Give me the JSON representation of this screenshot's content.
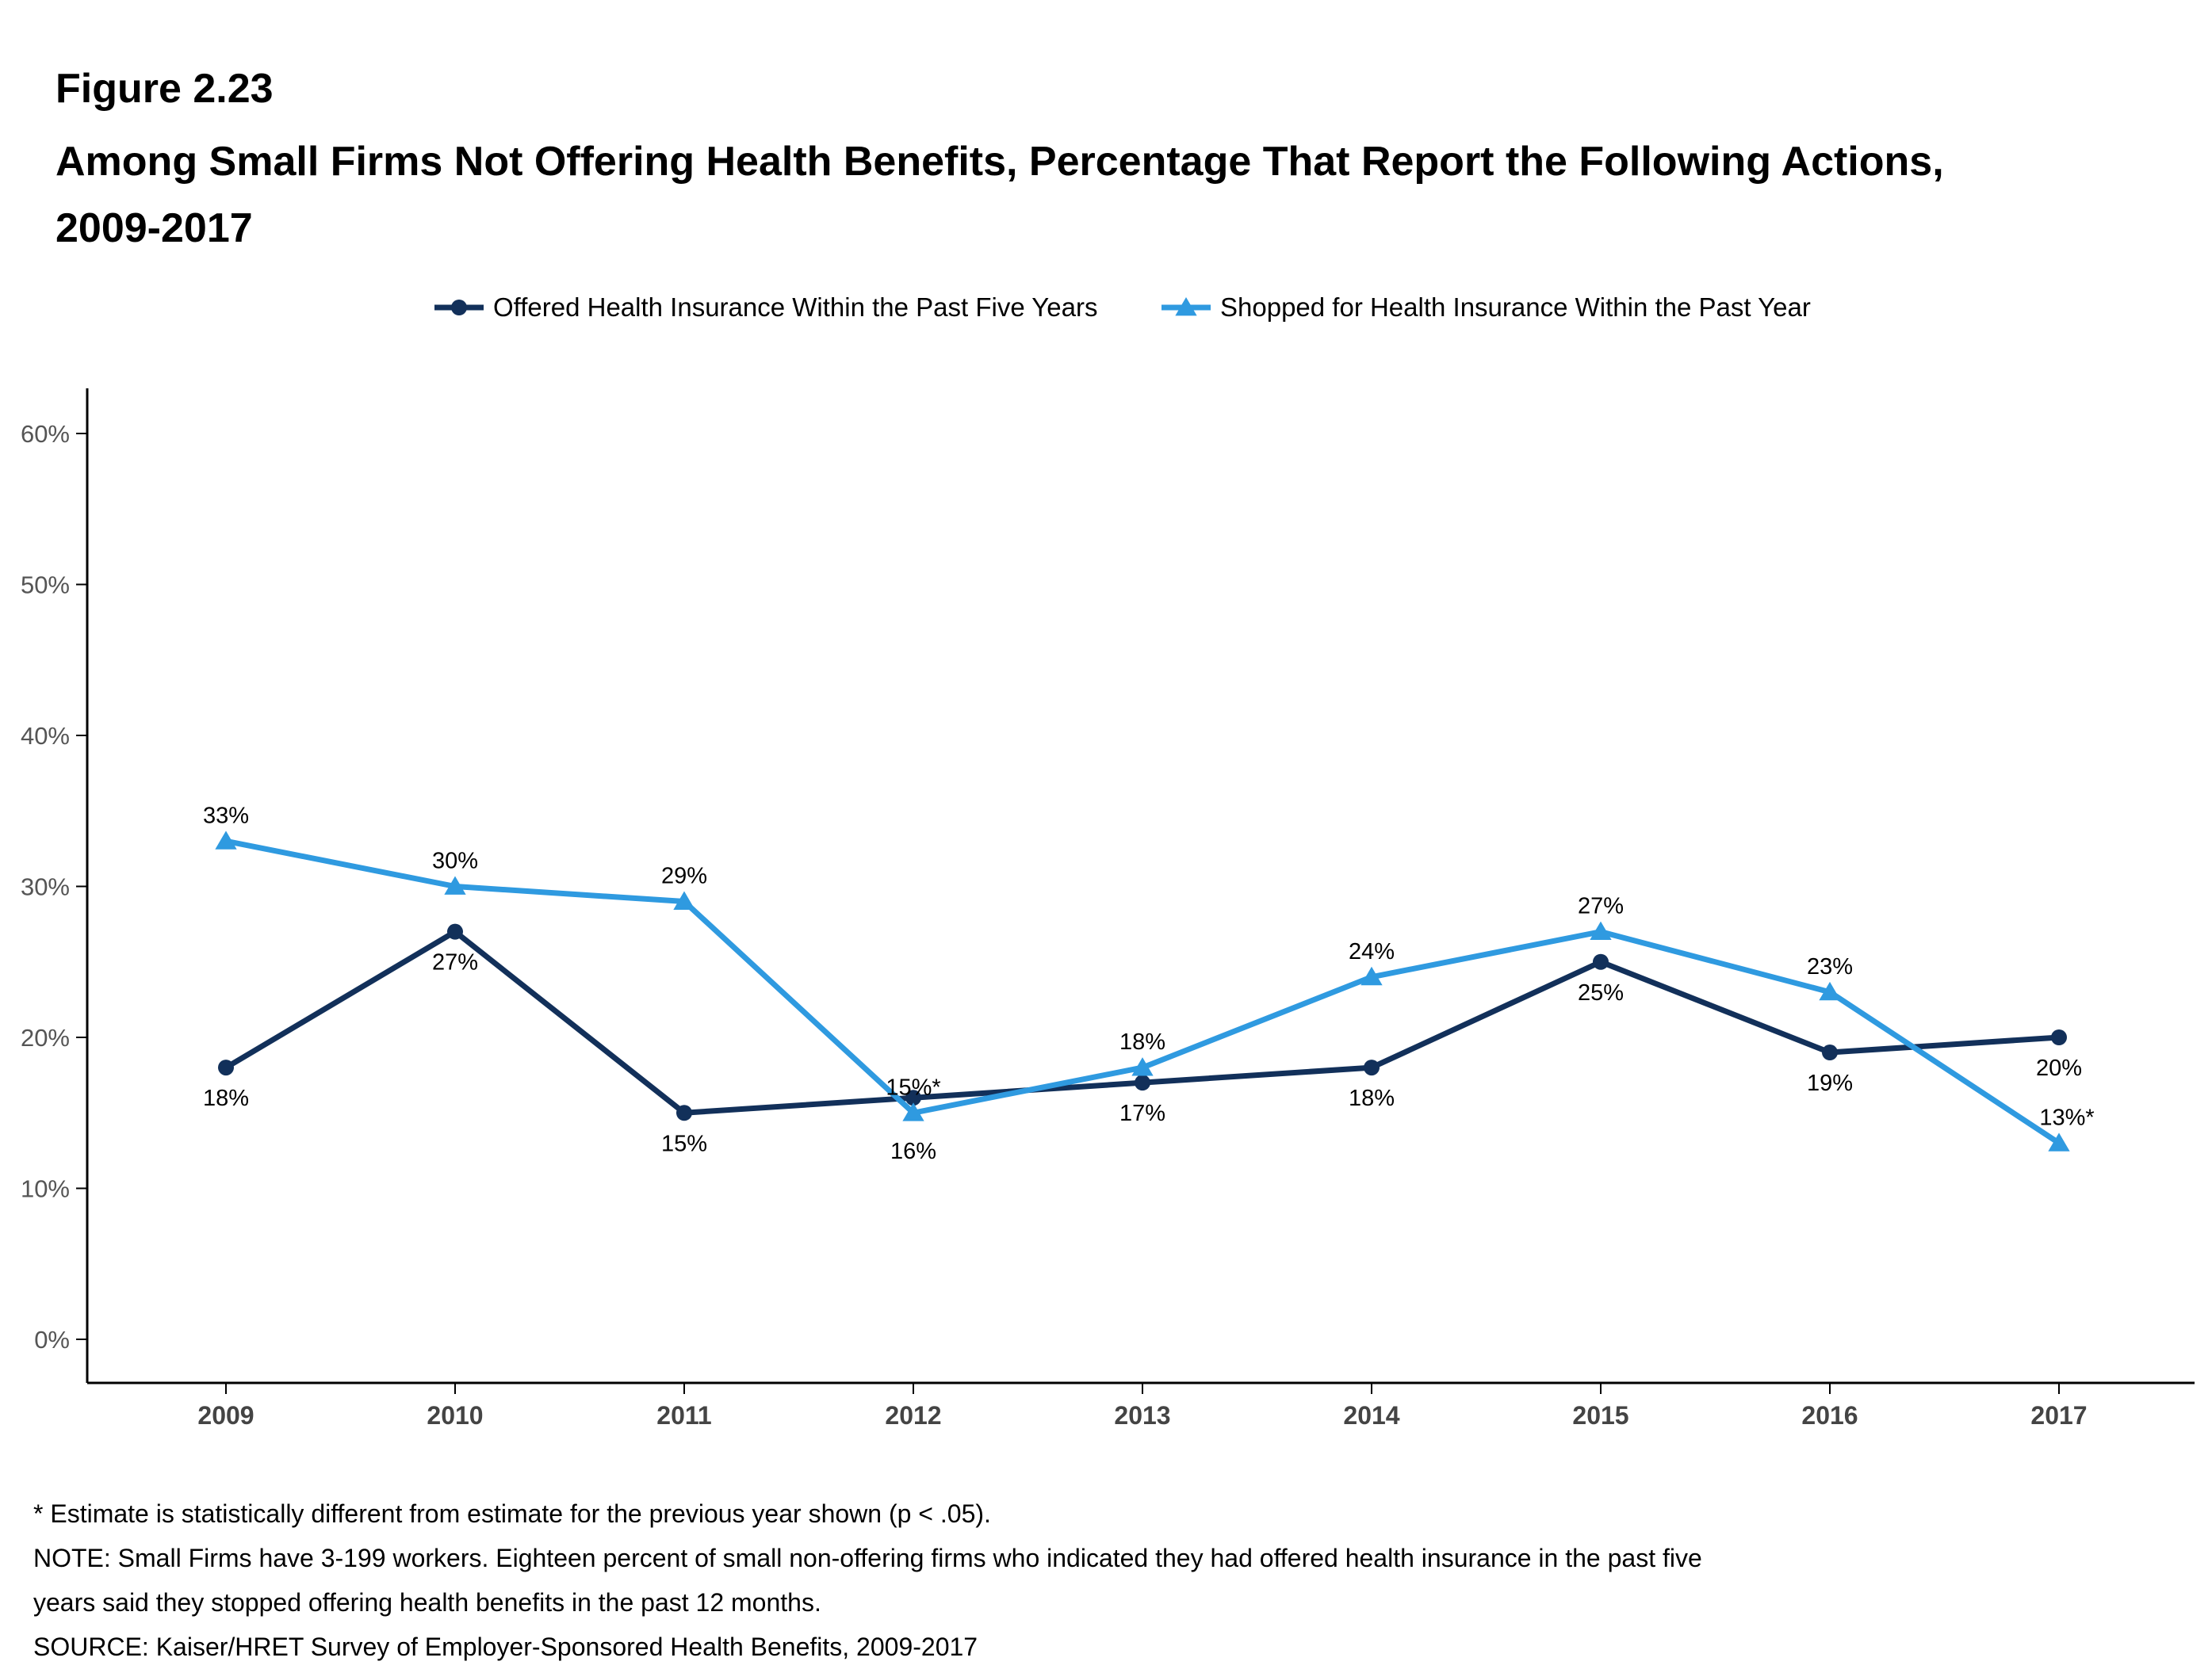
{
  "figure": {
    "label": "Figure 2.23",
    "title": "Among Small Firms Not Offering Health Benefits, Percentage That Report the Following Actions, 2009-2017"
  },
  "chart_data": {
    "type": "line",
    "title": "Among Small Firms Not Offering Health Benefits, Percentage That Report the Following Actions, 2009-2017",
    "xlabel": "",
    "ylabel": "",
    "categories": [
      "2009",
      "2010",
      "2011",
      "2012",
      "2013",
      "2014",
      "2015",
      "2016",
      "2017"
    ],
    "ylim": [
      0,
      60
    ],
    "yticks": [
      0,
      10,
      20,
      30,
      40,
      50,
      60
    ],
    "ytick_labels": [
      "0%",
      "10%",
      "20%",
      "30%",
      "40%",
      "50%",
      "60%"
    ],
    "grid": false,
    "legend_position": "top",
    "series": [
      {
        "name": "Offered Health Insurance Within the Past Five Years",
        "marker": "circle",
        "color": "#12305a",
        "values": [
          18,
          27,
          15,
          16,
          17,
          18,
          25,
          19,
          20
        ],
        "labels": [
          "18%",
          "27%",
          "15%",
          "16%",
          "17%",
          "18%",
          "25%",
          "19%",
          "20%"
        ]
      },
      {
        "name": "Shopped for Health Insurance Within the Past Year",
        "marker": "triangle",
        "color": "#2f9ae0",
        "values": [
          33,
          30,
          29,
          15,
          18,
          24,
          27,
          23,
          13
        ],
        "labels": [
          "33%",
          "30%",
          "29%",
          "15%*",
          "18%",
          "24%",
          "27%",
          "23%",
          "13%*"
        ]
      }
    ]
  },
  "notes": [
    "* Estimate is statistically different from estimate for the previous year shown (p < .05).",
    "NOTE: Small Firms have 3-199 workers. Eighteen percent of small non-offering firms who indicated they had offered health insurance in the past five",
    "years said they stopped offering health benefits in the past 12 months.",
    "SOURCE: Kaiser/HRET Survey of Employer-Sponsored Health Benefits, 2009-2017"
  ]
}
